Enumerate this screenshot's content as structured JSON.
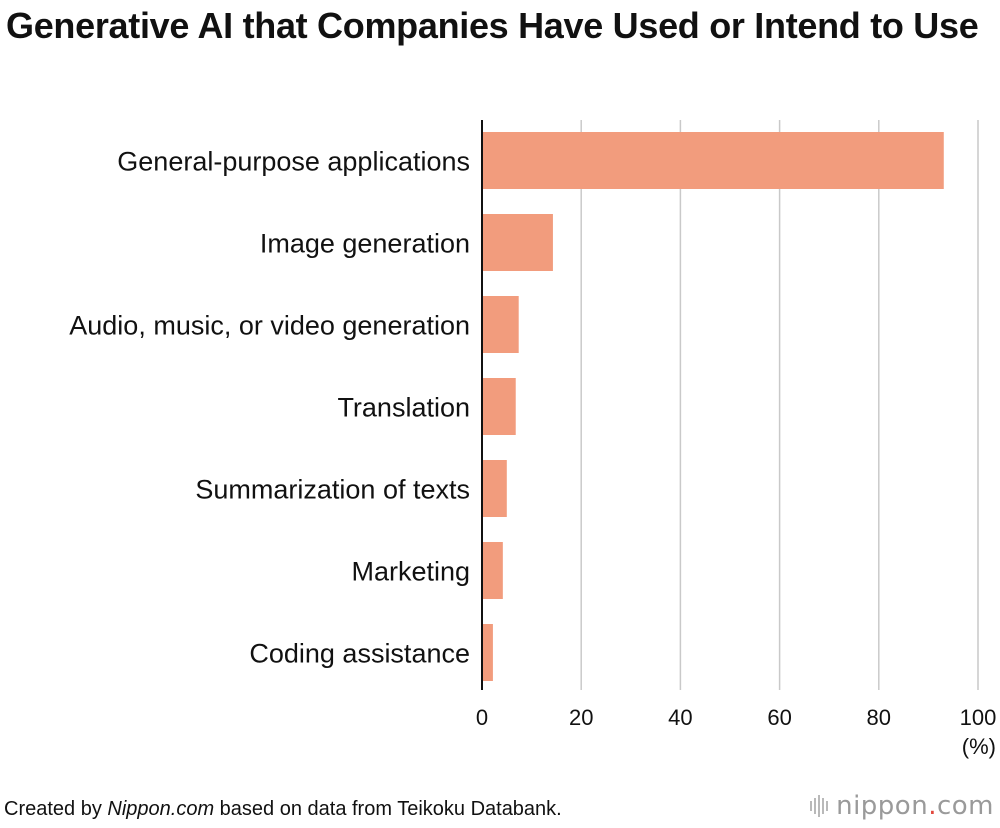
{
  "chart_data": {
    "type": "bar",
    "orientation": "horizontal",
    "title": "Generative AI that Companies Have Used or Intend to Use",
    "categories": [
      "General-purpose applications",
      "Image generation",
      "Audio, music, or video generation",
      "Translation",
      "Summarization of texts",
      "Marketing",
      "Coding assistance"
    ],
    "values": [
      93.1,
      14.3,
      7.4,
      6.8,
      5.0,
      4.2,
      2.2
    ],
    "xlim": [
      0,
      100
    ],
    "xticks": [
      0,
      20,
      40,
      60,
      80,
      100
    ],
    "xlabel": "(%)",
    "grid": "vertical",
    "bar_color": "#f29c7d"
  },
  "footer": {
    "credit_prefix": "Created by ",
    "credit_source": "Nippon.com",
    "credit_suffix": " based on data from Teikoku Databank."
  },
  "logo": {
    "name_left": "nippon",
    "dot": ".",
    "name_right": "com",
    "icon": "sound-bars-icon",
    "dot_color": "#e2483d"
  }
}
